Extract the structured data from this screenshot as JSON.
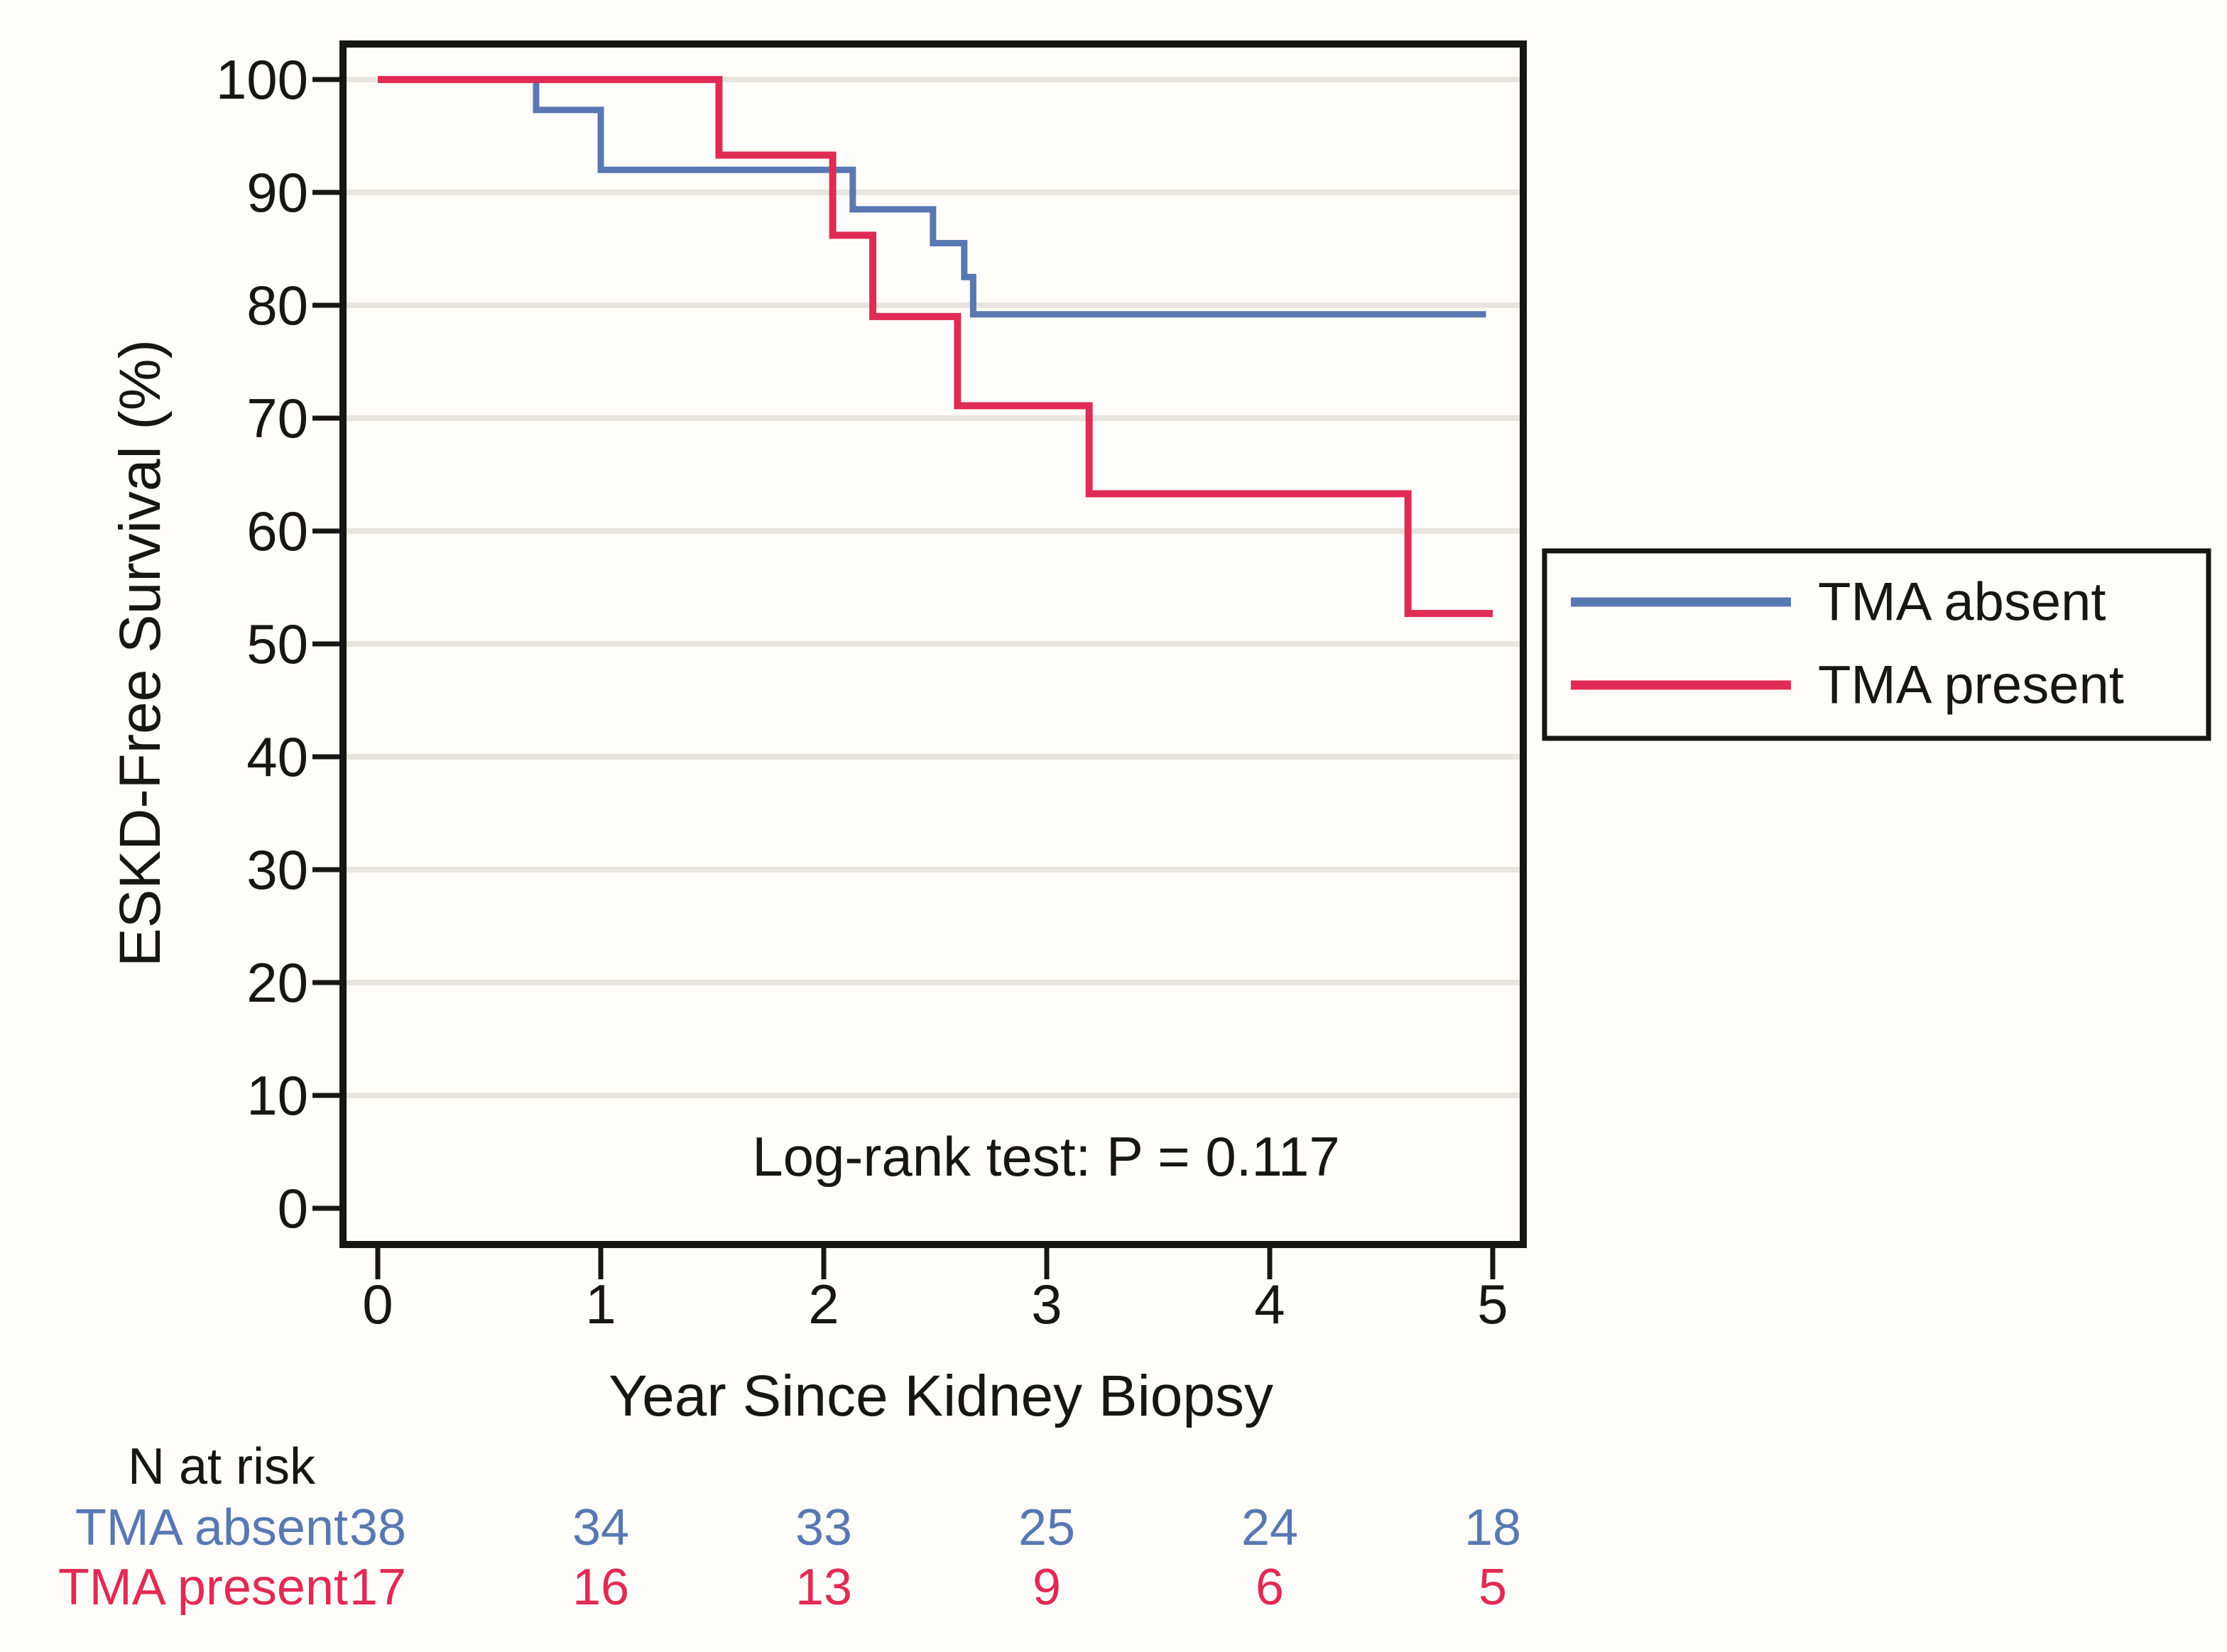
{
  "chart_data": {
    "type": "line",
    "subtype": "kaplan-meier-step-curve",
    "title": "",
    "xlabel": "Year Since Kidney Biopsy",
    "ylabel": "ESKD-Free Survival (%)",
    "annotation": "Log-rank test: P = 0.117",
    "xlim": [
      0,
      5
    ],
    "ylim": [
      0,
      100
    ],
    "x_ticks": [
      0,
      1,
      2,
      3,
      4,
      5
    ],
    "y_ticks": [
      0,
      10,
      20,
      30,
      40,
      50,
      60,
      70,
      80,
      90,
      100
    ],
    "y_gridlines": [
      10,
      20,
      30,
      40,
      50,
      60,
      70,
      80,
      90,
      100
    ],
    "grid": "horizontal only, light gray",
    "legend_position": "right, boxed",
    "colors": {
      "tma_absent": "#5878b2",
      "tma_present": "#e02b54",
      "grid": "#e9e5de",
      "axis": "#161614",
      "background": "#fffdf9"
    },
    "series": [
      {
        "name": "TMA absent",
        "color": "#5878b2",
        "start": {
          "t": 0,
          "s": 100
        },
        "steps": [
          {
            "t": 0.71,
            "s": 97.3
          },
          {
            "t": 1.0,
            "s": 92.0
          },
          {
            "t": 2.13,
            "s": 88.5
          },
          {
            "t": 2.49,
            "s": 85.5
          },
          {
            "t": 2.63,
            "s": 82.5
          },
          {
            "t": 2.67,
            "s": 79.2
          }
        ],
        "end_t": 4.97
      },
      {
        "name": "TMA present",
        "color": "#e02b54",
        "start": {
          "t": 0,
          "s": 100
        },
        "steps": [
          {
            "t": 1.53,
            "s": 93.3
          },
          {
            "t": 2.04,
            "s": 86.2
          },
          {
            "t": 2.22,
            "s": 79.0
          },
          {
            "t": 2.6,
            "s": 71.1
          },
          {
            "t": 3.19,
            "s": 63.3
          },
          {
            "t": 4.62,
            "s": 52.7
          }
        ],
        "end_t": 5.0
      }
    ],
    "at_risk": {
      "header": "N at risk",
      "times": [
        0,
        1,
        2,
        3,
        4,
        5
      ],
      "rows": [
        {
          "label": "TMA absent",
          "color": "#5878b2",
          "counts": [
            38,
            34,
            33,
            25,
            24,
            18
          ]
        },
        {
          "label": "TMA present",
          "color": "#e02b54",
          "counts": [
            17,
            16,
            13,
            9,
            6,
            5
          ]
        }
      ]
    }
  }
}
